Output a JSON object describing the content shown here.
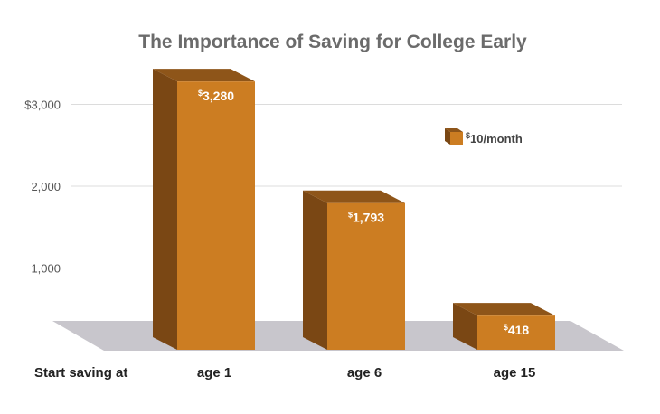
{
  "chart_data": {
    "type": "bar",
    "title": "The Importance of Saving for College Early",
    "xlabel": "Start saving at",
    "ylabel": "",
    "categories": [
      "age 1",
      "age 6",
      "age 15"
    ],
    "series": [
      {
        "name": "$10/month",
        "values": [
          3280,
          1793,
          418
        ]
      }
    ],
    "data_labels": [
      {
        "prefix": "$",
        "value": "3,280"
      },
      {
        "prefix": "$",
        "value": "1,793"
      },
      {
        "prefix": "$",
        "value": "418"
      }
    ],
    "legend": {
      "prefix": "$",
      "text": "10/month",
      "position": "top-right"
    },
    "yticks": [
      {
        "value": 1000,
        "label": "1,000"
      },
      {
        "value": 2000,
        "label": "2,000"
      },
      {
        "value": 3000,
        "label": "$3,000"
      }
    ],
    "ylim": [
      0,
      3500
    ],
    "grid": true,
    "colors": {
      "front": "#cc7d22",
      "side": "#7a4714",
      "top": "#8e5519",
      "floor": "#c8c6cc"
    }
  }
}
